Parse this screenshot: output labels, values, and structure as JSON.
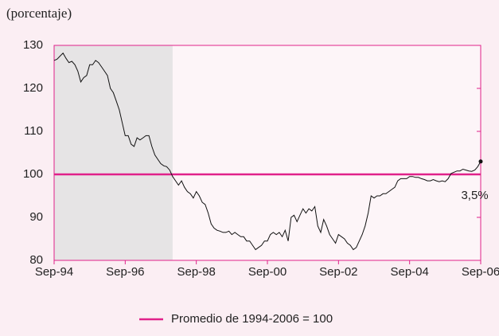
{
  "chart_data": {
    "type": "line",
    "ylabel": "(porcentaje)",
    "x": [
      "Sep-94",
      "Oct-94",
      "Nov-94",
      "Dic-94",
      "Ene-95",
      "Feb-95",
      "Mar-95",
      "Abr-95",
      "May-95",
      "Jun-95",
      "Jul-95",
      "Ago-95",
      "Sep-95",
      "Oct-95",
      "Nov-95",
      "Dic-95",
      "Ene-96",
      "Feb-96",
      "Mar-96",
      "Abr-96",
      "May-96",
      "Jun-96",
      "Jul-96",
      "Ago-96",
      "Sep-96",
      "Oct-96",
      "Nov-96",
      "Dic-96",
      "Ene-97",
      "Feb-97",
      "Mar-97",
      "Abr-97",
      "May-97",
      "Jun-97",
      "Jul-97",
      "Ago-97",
      "Sep-97",
      "Oct-97",
      "Nov-97",
      "Dic-97",
      "Ene-98",
      "Feb-98",
      "Mar-98",
      "Abr-98",
      "May-98",
      "Jun-98",
      "Jul-98",
      "Ago-98",
      "Sep-98",
      "Oct-98",
      "Nov-98",
      "Dic-98",
      "Ene-99",
      "Feb-99",
      "Mar-99",
      "Abr-99",
      "May-99",
      "Jun-99",
      "Jul-99",
      "Ago-99",
      "Sep-99",
      "Oct-99",
      "Nov-99",
      "Dic-99",
      "Ene-00",
      "Feb-00",
      "Mar-00",
      "Abr-00",
      "May-00",
      "Jun-00",
      "Jul-00",
      "Ago-00",
      "Sep-00",
      "Oct-00",
      "Nov-00",
      "Dic-00",
      "Ene-01",
      "Feb-01",
      "Mar-01",
      "Abr-01",
      "May-01",
      "Jun-01",
      "Jul-01",
      "Ago-01",
      "Sep-01",
      "Oct-01",
      "Nov-01",
      "Dic-01",
      "Ene-02",
      "Feb-02",
      "Mar-02",
      "Abr-02",
      "May-02",
      "Jun-02",
      "Jul-02",
      "Ago-02",
      "Sep-02",
      "Oct-02",
      "Nov-02",
      "Dic-02",
      "Ene-03",
      "Feb-03",
      "Mar-03",
      "Abr-03",
      "May-03",
      "Jun-03",
      "Jul-03",
      "Ago-03",
      "Sep-03",
      "Oct-03",
      "Nov-03",
      "Dic-03",
      "Ene-04",
      "Feb-04",
      "Mar-04",
      "Abr-04",
      "May-04",
      "Jun-04",
      "Jul-04",
      "Ago-04",
      "Sep-04",
      "Oct-04",
      "Nov-04",
      "Dic-04",
      "Ene-05",
      "Feb-05",
      "Mar-05",
      "Abr-05",
      "May-05",
      "Jun-05",
      "Jul-05",
      "Ago-05",
      "Sep-05",
      "Oct-05",
      "Nov-05",
      "Dic-05",
      "Ene-06",
      "Feb-06",
      "Mar-06",
      "Abr-06",
      "May-06",
      "Jun-06",
      "Jul-06",
      "Ago-06",
      "Sep-06"
    ],
    "series": [
      {
        "color": "#111111",
        "values": [
          126.5,
          126.8,
          127.5,
          128.2,
          127,
          126,
          126.3,
          125.5,
          124,
          121.5,
          122.5,
          123,
          125.5,
          125.5,
          126.5,
          126,
          125,
          124,
          123,
          120,
          119,
          117,
          115,
          112,
          109,
          109,
          107,
          106.5,
          108.5,
          108,
          108.5,
          109,
          109,
          106.5,
          104.5,
          103.5,
          102.5,
          102,
          101.8,
          101,
          99.5,
          98.5,
          97.5,
          98.5,
          97,
          96,
          95.5,
          94.5,
          96,
          95,
          93.5,
          93,
          91,
          88.5,
          87.5,
          87,
          86.8,
          86.5,
          86.5,
          86.8,
          86,
          86.5,
          86,
          85.5,
          85.5,
          84.5,
          84.5,
          83.5,
          82.5,
          83,
          83.5,
          84.5,
          84.5,
          86,
          86.5,
          86,
          86.5,
          85.5,
          87,
          84.5,
          90,
          90.5,
          89,
          90.5,
          92,
          91,
          92,
          91.5,
          92.5,
          88,
          86.5,
          89.5,
          88,
          86,
          85,
          84,
          86,
          85.5,
          85,
          84,
          83.5,
          82.5,
          83,
          84.5,
          86,
          88,
          91,
          95,
          94.5,
          95,
          95,
          95.5,
          95.5,
          96,
          96.5,
          97,
          98.5,
          99,
          99,
          99,
          99.5,
          99.5,
          99.3,
          99.3,
          99,
          98.8,
          98.5,
          98.5,
          98.8,
          98.5,
          98.3,
          98.5,
          98.3,
          99,
          100.2,
          100.5,
          100.8,
          100.8,
          101.2,
          101,
          100.8,
          100.7,
          101,
          101.8,
          103
        ]
      }
    ],
    "reference_line": {
      "name": "Promedio de 1994-2006 = 100",
      "value": 100,
      "color": "#e0218a"
    },
    "annotation": {
      "text": "3,5%",
      "x": "Jul-06"
    },
    "shaded_range": {
      "from": "Sep-94",
      "to": "Ene-98",
      "color": "#e6e4e5"
    },
    "xticks": [
      "Sep-94",
      "Sep-96",
      "Sep-98",
      "Sep-00",
      "Sep-02",
      "Sep-04",
      "Sep-06"
    ],
    "ylim": [
      80,
      130
    ],
    "yticks": [
      80,
      90,
      100,
      110,
      120,
      130
    ]
  }
}
